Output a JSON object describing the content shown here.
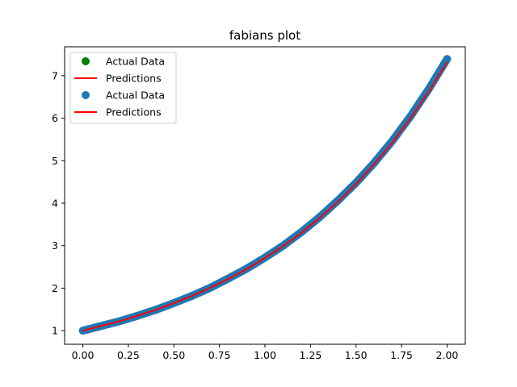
{
  "chart_data": {
    "type": "scatter",
    "title": "fabians plot",
    "xlabel": "",
    "ylabel": "",
    "xlim": [
      -0.1,
      2.1
    ],
    "ylim": [
      0.68,
      7.68
    ],
    "xticks": [
      0.0,
      0.25,
      0.5,
      0.75,
      1.0,
      1.25,
      1.5,
      1.75,
      2.0
    ],
    "xtick_labels": [
      "0.00",
      "0.25",
      "0.50",
      "0.75",
      "1.00",
      "1.25",
      "1.50",
      "1.75",
      "2.00"
    ],
    "yticks": [
      1,
      2,
      3,
      4,
      5,
      6,
      7
    ],
    "ytick_labels": [
      "1",
      "2",
      "3",
      "4",
      "5",
      "6",
      "7"
    ],
    "grid": false,
    "legend_position": "top-left",
    "legend": [
      {
        "label": "Actual Data",
        "marker": "dot",
        "color": "#008000"
      },
      {
        "label": "Predictions",
        "marker": "line",
        "color": "#ff0000"
      },
      {
        "label": "Actual Data",
        "marker": "dot",
        "color": "#1f77b4"
      },
      {
        "label": "Predictions",
        "marker": "line",
        "color": "#ff0000"
      }
    ],
    "series": [
      {
        "type": "scatter",
        "color": "#1f77b4",
        "x": [
          0.0,
          0.1,
          0.2,
          0.3,
          0.4,
          0.5,
          0.6,
          0.7,
          0.8,
          0.9,
          1.0,
          1.1,
          1.2,
          1.3,
          1.4,
          1.5,
          1.6,
          1.7,
          1.8,
          1.9,
          2.0
        ],
        "y": [
          1.0,
          1.11,
          1.22,
          1.35,
          1.49,
          1.65,
          1.82,
          2.01,
          2.23,
          2.46,
          2.72,
          3.0,
          3.32,
          3.67,
          4.06,
          4.48,
          4.95,
          5.47,
          6.05,
          6.69,
          7.39
        ]
      },
      {
        "type": "line",
        "color": "#ff0000",
        "x": [
          0.0,
          0.1,
          0.2,
          0.3,
          0.4,
          0.5,
          0.6,
          0.7,
          0.8,
          0.9,
          1.0,
          1.1,
          1.2,
          1.3,
          1.4,
          1.5,
          1.6,
          1.7,
          1.8,
          1.9,
          2.0
        ],
        "y": [
          1.0,
          1.11,
          1.22,
          1.35,
          1.49,
          1.65,
          1.82,
          2.01,
          2.22,
          2.45,
          2.71,
          2.99,
          3.3,
          3.65,
          4.03,
          4.45,
          4.92,
          5.43,
          6.0,
          6.63,
          7.32
        ]
      }
    ]
  }
}
